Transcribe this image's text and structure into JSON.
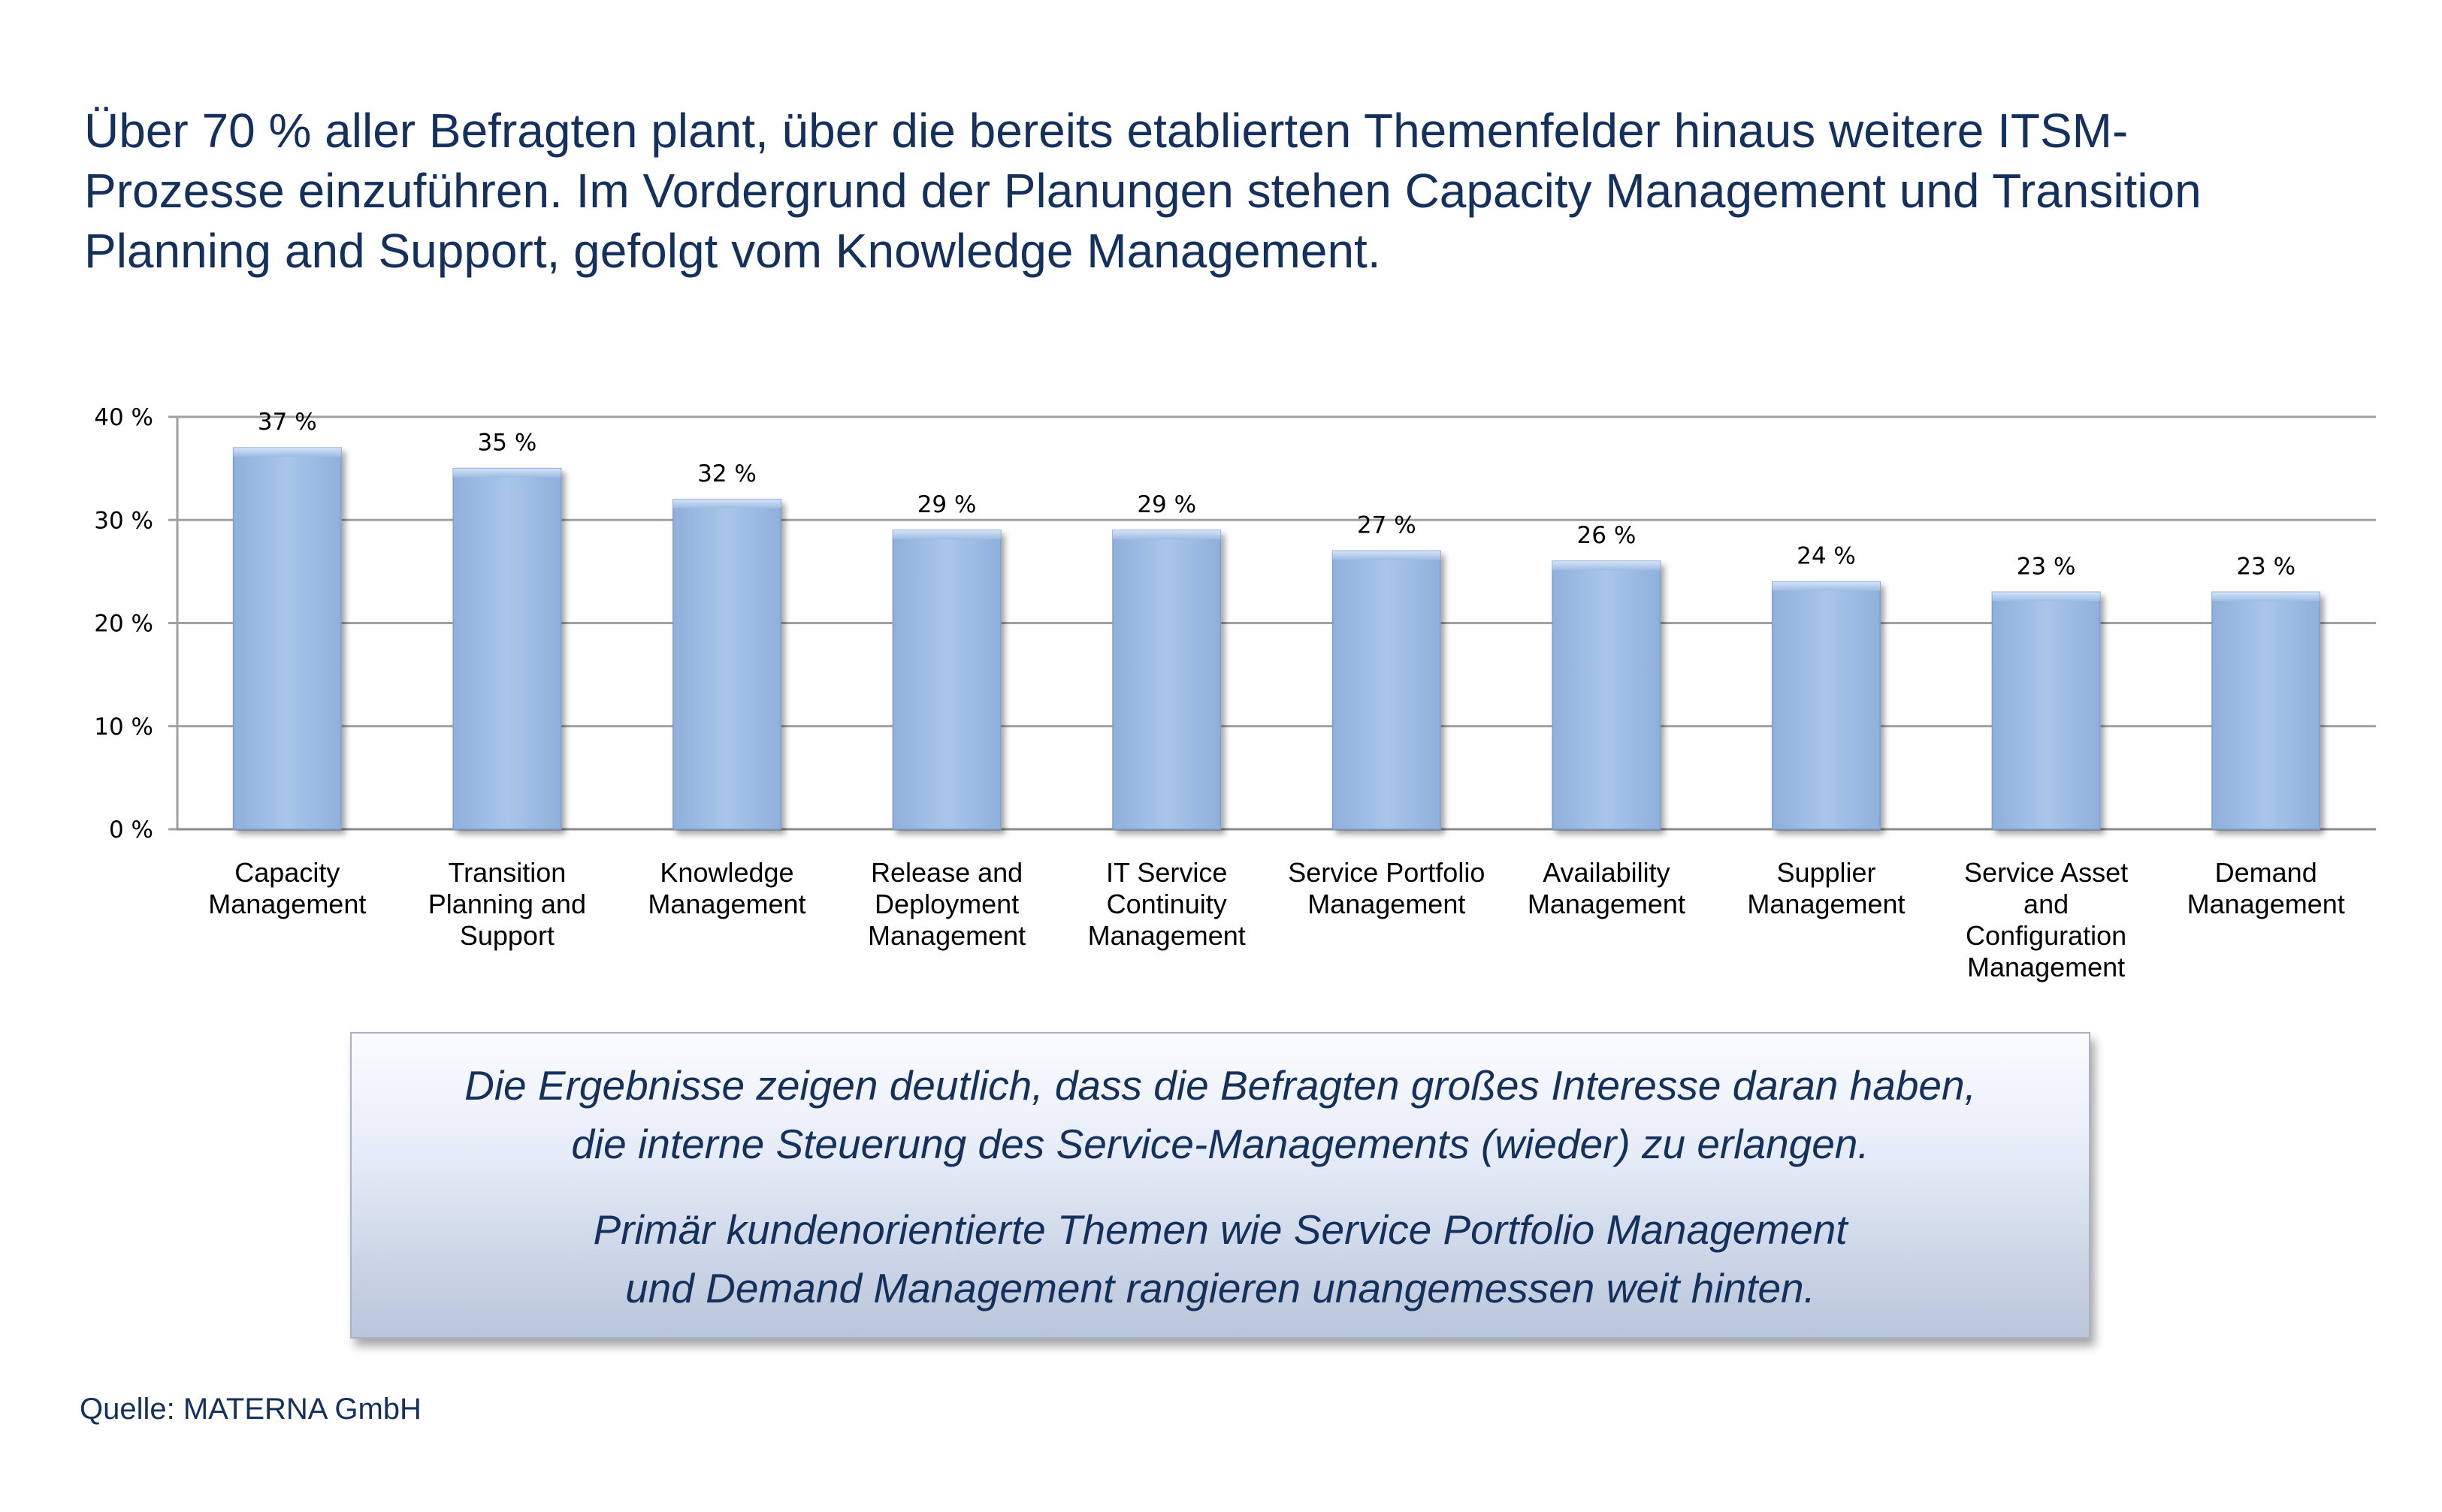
{
  "headline": {
    "lines": [
      "Über 70 % aller Befragten plant, über die bereits etablierten Themenfelder hinaus weitere ITSM-",
      "Prozesse einzuführen. Im Vordergrund der Planungen stehen Capacity Management und Transition",
      "Planning and Support, gefolgt vom Knowledge Management."
    ]
  },
  "chart_data": {
    "type": "bar",
    "title": "",
    "xlabel": "",
    "ylabel": "",
    "ylim": [
      0,
      40
    ],
    "yticks": [
      0,
      10,
      20,
      30,
      40
    ],
    "ytick_labels": [
      "0 %",
      "10 %",
      "20 %",
      "30 %",
      "40 %"
    ],
    "grid": true,
    "bar_color": "#a4c1e6",
    "categories": [
      [
        "Capacity",
        "Management"
      ],
      [
        "Transition",
        "Planning and",
        "Support"
      ],
      [
        "Knowledge",
        "Management"
      ],
      [
        "Release and",
        "Deployment",
        "Management"
      ],
      [
        "IT Service",
        "Continuity",
        "Management"
      ],
      [
        "Service Portfolio",
        "Management"
      ],
      [
        "Availability",
        "Management"
      ],
      [
        "Supplier",
        "Management"
      ],
      [
        "Service Asset",
        "and",
        "Configuration",
        "Management"
      ],
      [
        "Demand",
        "Management"
      ]
    ],
    "values": [
      37,
      35,
      32,
      29,
      29,
      27,
      26,
      24,
      23,
      23
    ],
    "value_labels": [
      "37 %",
      "35 %",
      "32 %",
      "29 %",
      "29 %",
      "27 %",
      "26 %",
      "24 %",
      "23 %",
      "23 %"
    ]
  },
  "callout": {
    "paragraph1": [
      "Die Ergebnisse zeigen deutlich, dass die Befragten großes Interesse daran haben,",
      "die interne Steuerung des Service-Managements (wieder) zu erlangen."
    ],
    "paragraph2": [
      "Primär kundenorientierte Themen wie Service Portfolio Management",
      "und Demand Management rangieren unangemessen weit hinten."
    ]
  },
  "source": "Quelle: MATERNA GmbH",
  "colors": {
    "text_dark_blue": "#14305c",
    "bar_fill": "#a4c1e6",
    "grid": "#a0a0a0"
  }
}
